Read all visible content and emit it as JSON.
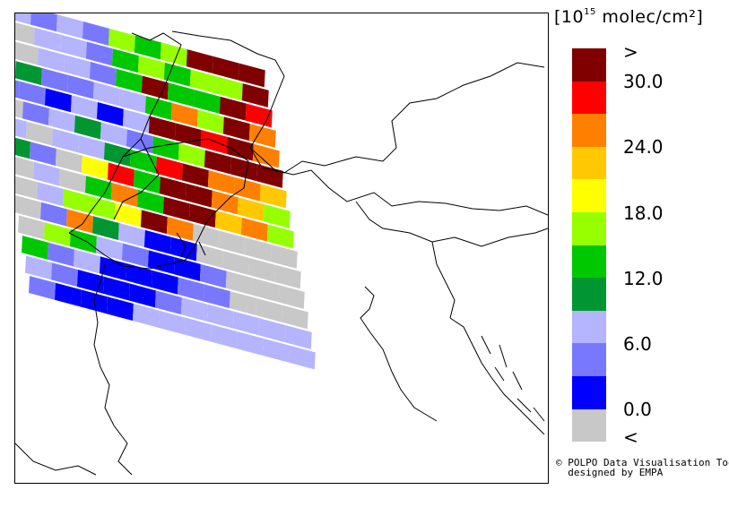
{
  "unit_label": {
    "prefix": "[10",
    "exponent": "15",
    "suffix": " molec/cm²]"
  },
  "legend": {
    "colors_top_to_bottom": [
      "#800000",
      "#ff0000",
      "#ff8000",
      "#ffc800",
      "#ffff00",
      "#96ff00",
      "#00c800",
      "#009632",
      "#b4b4ff",
      "#7878ff",
      "#0000ff",
      "#c8c8c8"
    ],
    "labels": [
      ">",
      "30.0",
      "24.0",
      "18.0",
      "12.0",
      "6.0",
      "0.0",
      "<"
    ]
  },
  "credit": {
    "line1": "© POLPO Data Visualisation Tool",
    "line2": "  designed by EMPA"
  }
}
